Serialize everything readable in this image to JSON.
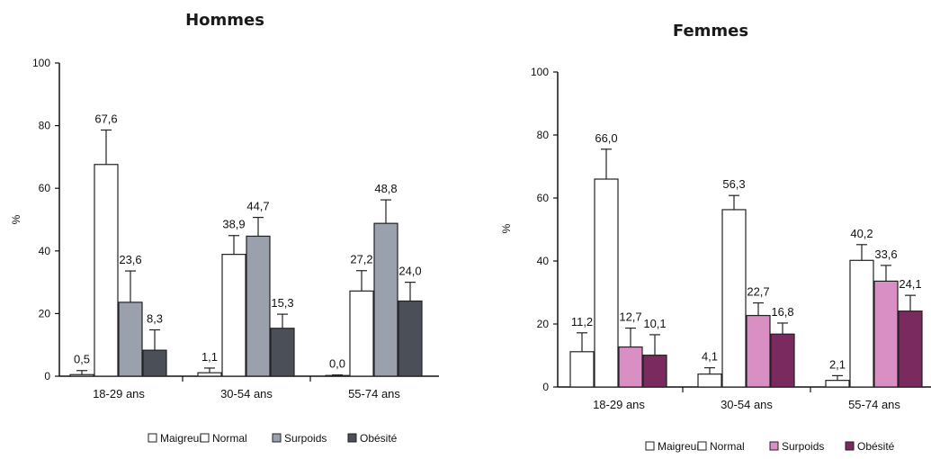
{
  "chart_data": [
    {
      "type": "bar",
      "title": "Hommes",
      "ylabel": "%",
      "ylim": [
        0,
        100
      ],
      "yticks": [
        "0",
        "20",
        "40",
        "60",
        "80",
        "100"
      ],
      "categories": [
        "18-29 ans",
        "30-54 ans",
        "55-74 ans"
      ],
      "series": [
        {
          "name": "Maigreur",
          "color": "#ffffff",
          "values": [
            0.5,
            1.1,
            0.0
          ],
          "labels": [
            "0,5",
            "1,1",
            "0,0"
          ],
          "err": [
            1.3,
            1.5,
            0.4
          ]
        },
        {
          "name": "Normal",
          "color": "#ffffff",
          "values": [
            67.6,
            38.9,
            27.2
          ],
          "labels": [
            "67,6",
            "38,9",
            "27,2"
          ],
          "err": [
            11.0,
            6.0,
            6.5
          ]
        },
        {
          "name": "Surpoids",
          "color": "#9aa1ad",
          "values": [
            23.6,
            44.7,
            48.8
          ],
          "labels": [
            "23,6",
            "44,7",
            "48,8"
          ],
          "err": [
            10.0,
            6.0,
            7.5
          ]
        },
        {
          "name": "Obésité",
          "color": "#4b4f58",
          "values": [
            8.3,
            15.3,
            24.0
          ],
          "labels": [
            "8,3",
            "15,3",
            "24,0"
          ],
          "err": [
            6.5,
            4.5,
            6.0
          ]
        }
      ],
      "legend": "bottom"
    },
    {
      "type": "bar",
      "title": "Femmes",
      "ylabel": "%",
      "ylim": [
        0,
        100
      ],
      "yticks": [
        "0",
        "20",
        "40",
        "60",
        "80",
        "100"
      ],
      "categories": [
        "18-29 ans",
        "30-54 ans",
        "55-74 ans"
      ],
      "series": [
        {
          "name": "Maigreur",
          "color": "#ffffff",
          "values": [
            11.2,
            4.1,
            2.1
          ],
          "labels": [
            "11,2",
            "4,1",
            "2,1"
          ],
          "err": [
            6.0,
            2.0,
            1.5
          ]
        },
        {
          "name": "Normal",
          "color": "#ffffff",
          "values": [
            66.0,
            56.3,
            40.2
          ],
          "labels": [
            "66,0",
            "56,3",
            "40,2"
          ],
          "err": [
            9.5,
            4.5,
            5.0
          ]
        },
        {
          "name": "Surpoids",
          "color": "#d98fc4",
          "values": [
            12.7,
            22.7,
            33.6
          ],
          "labels": [
            "12,7",
            "22,7",
            "33,6"
          ],
          "err": [
            6.0,
            4.0,
            5.0
          ]
        },
        {
          "name": "Obésité",
          "color": "#7a2a5e",
          "values": [
            10.1,
            16.8,
            24.1
          ],
          "labels": [
            "10,1",
            "16,8",
            "24,1"
          ],
          "err": [
            6.5,
            3.5,
            5.0
          ]
        }
      ],
      "legend": "bottom"
    }
  ]
}
